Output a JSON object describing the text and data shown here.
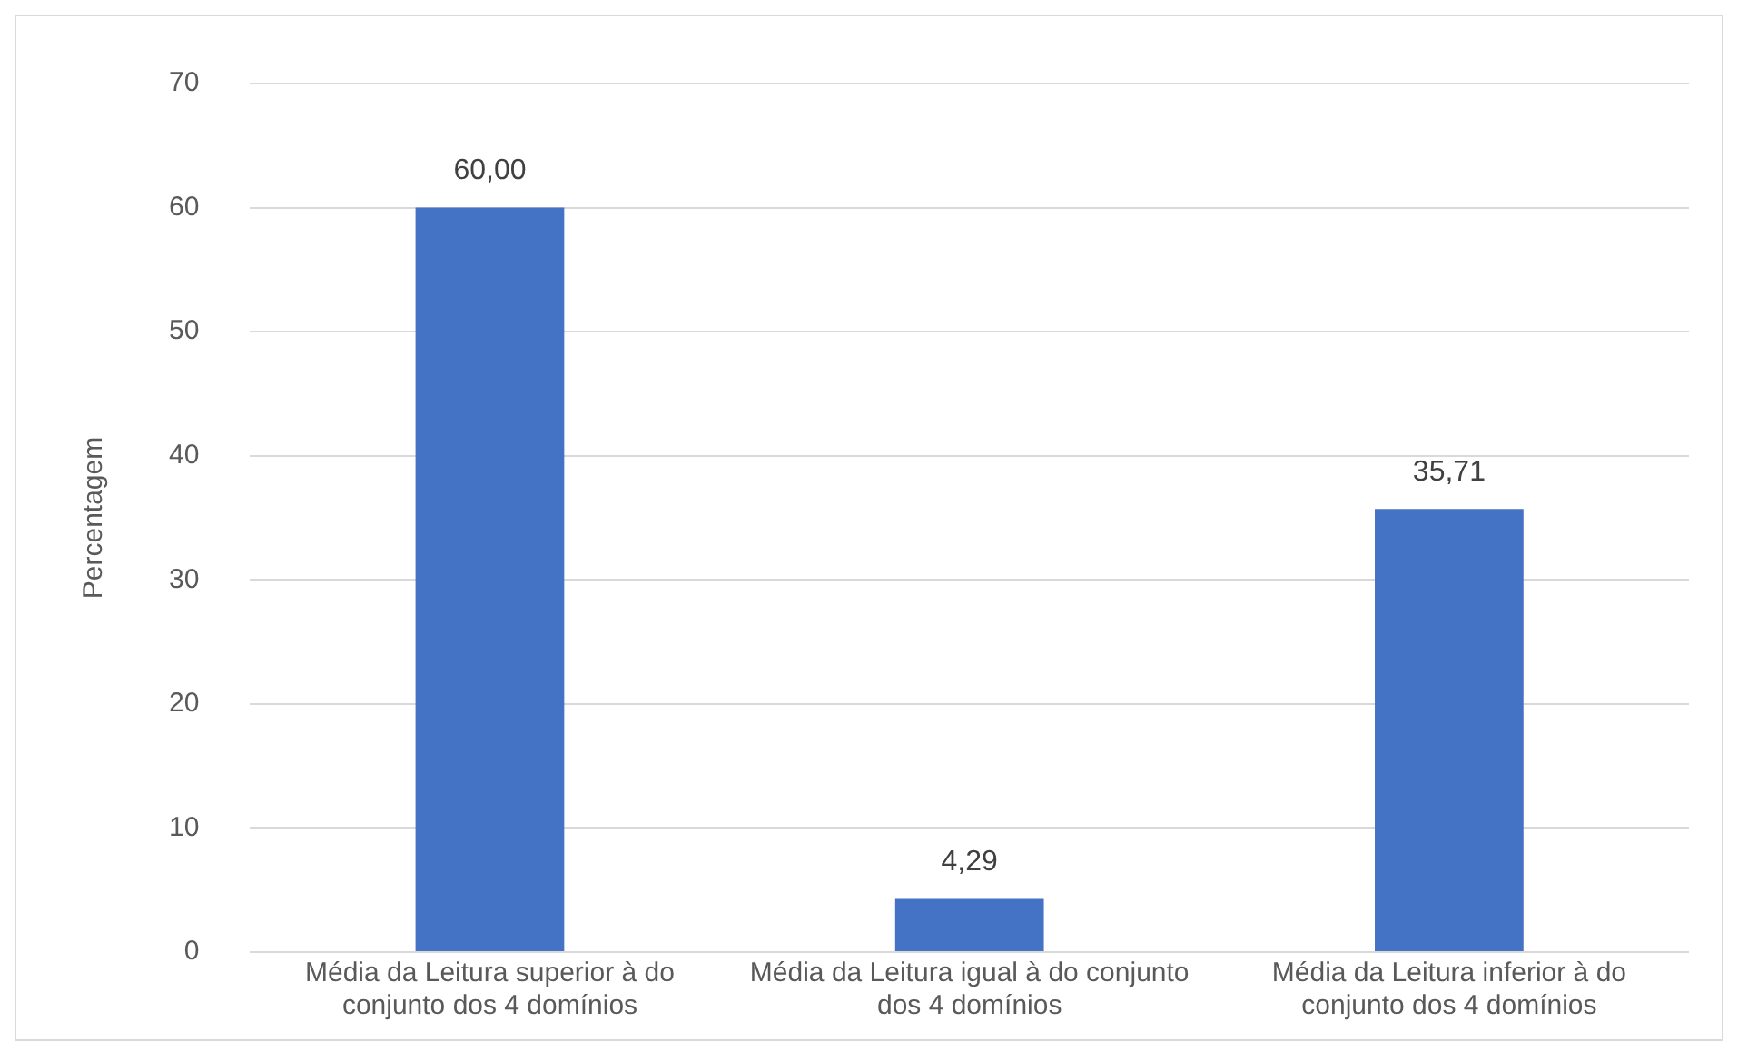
{
  "chart_data": {
    "type": "bar",
    "ylabel": "Percentagem",
    "categories": [
      "Média da Leitura superior à do conjunto dos 4 domínios",
      "Média da Leitura igual à do conjunto dos 4 domínios",
      "Média da Leitura inferior à do conjunto dos 4 domínios"
    ],
    "values": [
      60.0,
      4.29,
      35.71
    ],
    "value_labels": [
      "60,00",
      "4,29",
      "35,71"
    ],
    "color": "#4472c4",
    "ylim": [
      0,
      70
    ],
    "yticks": [
      0,
      10,
      20,
      30,
      40,
      50,
      60,
      70
    ],
    "grid": "y"
  }
}
